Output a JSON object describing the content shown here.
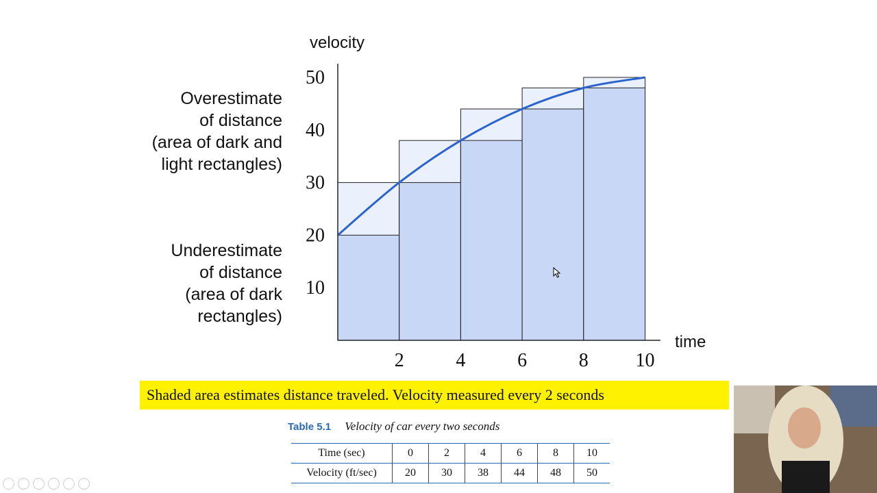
{
  "chart_data": {
    "type": "bar",
    "ylabel": "velocity",
    "xlabel": "time",
    "yticks": [
      10,
      20,
      30,
      40,
      50
    ],
    "xticks": [
      2,
      4,
      6,
      8,
      10
    ],
    "xlim": [
      0,
      10.5
    ],
    "ylim": [
      0,
      50
    ],
    "x": [
      0,
      2,
      4,
      6,
      8,
      10
    ],
    "underestimate_heights": [
      20,
      30,
      38,
      44,
      48
    ],
    "overestimate_heights": [
      30,
      38,
      44,
      48,
      50
    ],
    "curve": [
      [
        0,
        20
      ],
      [
        2,
        30
      ],
      [
        4,
        38
      ],
      [
        6,
        44
      ],
      [
        8,
        48
      ],
      [
        10,
        50
      ]
    ],
    "colors": {
      "dark": "#c7d7f5",
      "light": "#eaf0fc",
      "curve": "#2b63cf",
      "outline": "#222222"
    }
  },
  "labels": {
    "over": [
      "Overestimate",
      "of distance",
      "(area of dark and",
      "light rectangles)"
    ],
    "under": [
      "Underestimate",
      "of distance",
      "(area of dark",
      "rectangles)"
    ]
  },
  "caption": "Shaded area estimates distance traveled. Velocity measured every 2 seconds",
  "table": {
    "label": "Table 5.1",
    "title": "Velocity of car every two seconds",
    "rows": [
      [
        "Time (sec)",
        "0",
        "2",
        "4",
        "6",
        "8",
        "10"
      ],
      [
        "Velocity (ft/sec)",
        "20",
        "30",
        "38",
        "44",
        "48",
        "50"
      ]
    ]
  },
  "toolbar_icons": [
    "prev-icon",
    "next-icon",
    "pen-icon",
    "copy-icon",
    "zoom-icon",
    "more-icon"
  ]
}
